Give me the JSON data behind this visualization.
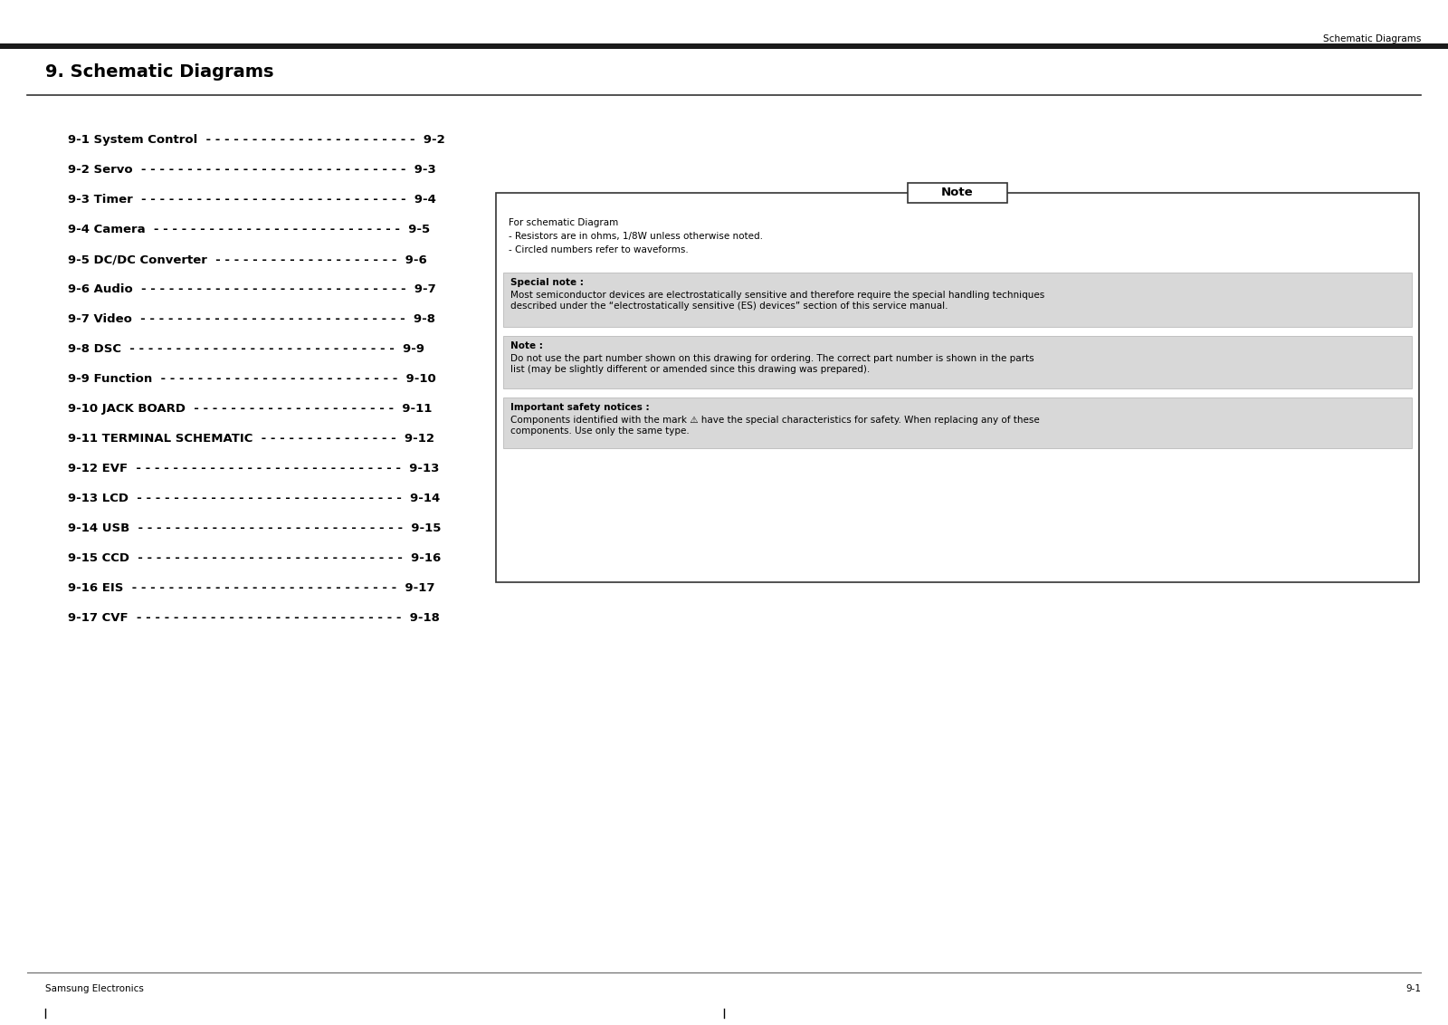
{
  "page_title_top_right": "Schematic Diagrams",
  "section_title": "9. Schematic Diagrams",
  "footer_left": "Samsung Electronics",
  "footer_right": "9-1",
  "toc_entries": [
    {
      "label": "9-1 System Control",
      "dashes": "- - - - - - - - - - - - - - - - - - - - - - -",
      "page": "9-2"
    },
    {
      "label": "9-2 Servo",
      "dashes": "- - - - - - - - - - - - - - - - - - - - - - - - - - - - -",
      "page": "9-3"
    },
    {
      "label": "9-3 Timer",
      "dashes": "- - - - - - - - - - - - - - - - - - - - - - - - - - - - -",
      "page": "9-4"
    },
    {
      "label": "9-4 Camera",
      "dashes": "- - - - - - - - - - - - - - - - - - - - - - - - - - -",
      "page": "9-5"
    },
    {
      "label": "9-5 DC/DC Converter",
      "dashes": "- - - - - - - - - - - - - - - - - - - -",
      "page": "9-6"
    },
    {
      "label": "9-6 Audio",
      "dashes": "- - - - - - - - - - - - - - - - - - - - - - - - - - - - -",
      "page": "9-7"
    },
    {
      "label": "9-7 Video",
      "dashes": "- - - - - - - - - - - - - - - - - - - - - - - - - - - - -",
      "page": "9-8"
    },
    {
      "label": "9-8 DSC",
      "dashes": "- - - - - - - - - - - - - - - - - - - - - - - - - - - - -",
      "page": "9-9"
    },
    {
      "label": "9-9 Function",
      "dashes": "- - - - - - - - - - - - - - - - - - - - - - - - - -",
      "page": "9-10"
    },
    {
      "label": "9-10 JACK BOARD",
      "dashes": "- - - - - - - - - - - - - - - - - - - - - -",
      "page": "9-11"
    },
    {
      "label": "9-11 TERMINAL SCHEMATIC",
      "dashes": "- - - - - - - - - - - - - - -",
      "page": "9-12"
    },
    {
      "label": "9-12 EVF",
      "dashes": "- - - - - - - - - - - - - - - - - - - - - - - - - - - - -",
      "page": "9-13"
    },
    {
      "label": "9-13 LCD",
      "dashes": "- - - - - - - - - - - - - - - - - - - - - - - - - - - - -",
      "page": "9-14"
    },
    {
      "label": "9-14 USB",
      "dashes": "- - - - - - - - - - - - - - - - - - - - - - - - - - - - -",
      "page": "9-15"
    },
    {
      "label": "9-15 CCD",
      "dashes": "- - - - - - - - - - - - - - - - - - - - - - - - - - - - -",
      "page": "9-16"
    },
    {
      "label": "9-16 EIS",
      "dashes": "- - - - - - - - - - - - - - - - - - - - - - - - - - - - -",
      "page": "9-17"
    },
    {
      "label": "9-17 CVF",
      "dashes": "- - - - - - - - - - - - - - - - - - - - - - - - - - - - -",
      "page": "9-18"
    }
  ],
  "note_box": {
    "title": "Note",
    "intro_lines": [
      "For schematic Diagram",
      "- Resistors are in ohms, 1/8W unless otherwise noted.",
      "- Circled numbers refer to waveforms."
    ],
    "special_note_title": "Special note :",
    "special_note_body": "Most semiconductor devices are electrostatically sensitive and therefore require the special handling techniques\ndescribed under the “electrostatically sensitive (ES) devices” section of this service manual.",
    "note2_title": "Note :",
    "note2_body": "Do not use the part number shown on this drawing for ordering. The correct part number is shown in the parts\nlist (may be slightly different or amended since this drawing was prepared).",
    "safety_title": "Important safety notices :",
    "safety_body": "Components identified with the mark ⚠ have the special characteristics for safety. When replacing any of these\ncomponents. Use only the same type."
  },
  "bg_color": "#ffffff",
  "text_color": "#000000",
  "gray_color": "#d8d8d8",
  "header_bar_color": "#1a1a1a",
  "toc_label_fontsize": 9.5,
  "toc_page_fontsize": 9.5,
  "section_title_fontsize": 14,
  "header_fontsize": 7.5,
  "footer_fontsize": 7.5,
  "note_fontsize": 7.5,
  "note_label_fontsize": 7.5
}
